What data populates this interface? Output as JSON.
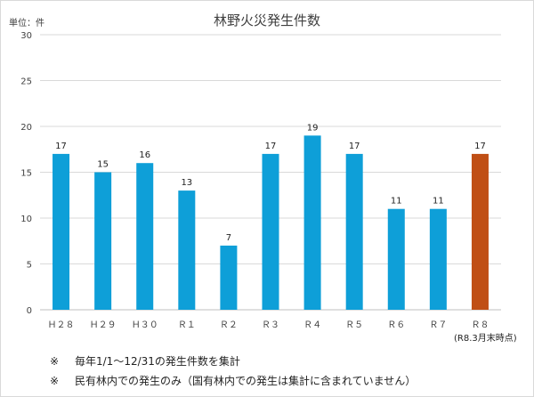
{
  "chart_data": {
    "type": "bar",
    "title": "林野火災発生件数",
    "unit_label": "単位：件",
    "categories": [
      "Ｈ２８",
      "Ｈ２９",
      "Ｈ３０",
      "Ｒ１",
      "Ｒ２",
      "Ｒ３",
      "Ｒ４",
      "Ｒ５",
      "Ｒ６",
      "Ｒ７",
      "Ｒ８"
    ],
    "values": [
      17,
      15,
      16,
      13,
      7,
      17,
      19,
      17,
      11,
      11,
      17
    ],
    "colors": [
      "#0e9fd8",
      "#0e9fd8",
      "#0e9fd8",
      "#0e9fd8",
      "#0e9fd8",
      "#0e9fd8",
      "#0e9fd8",
      "#0e9fd8",
      "#0e9fd8",
      "#0e9fd8",
      "#c04f15"
    ],
    "ylim": [
      0,
      30
    ],
    "yticks": [
      0,
      5,
      10,
      15,
      20,
      25,
      30
    ],
    "grid": true,
    "data_labels": true,
    "last_category_note": "(R8.3月末時点)"
  },
  "notes": [
    {
      "mark": "※",
      "text": "毎年1/1～12/31の発生件数を集計"
    },
    {
      "mark": "※",
      "text": "民有林内での発生のみ（国有林内での発生は集計に含まれていません）"
    }
  ]
}
